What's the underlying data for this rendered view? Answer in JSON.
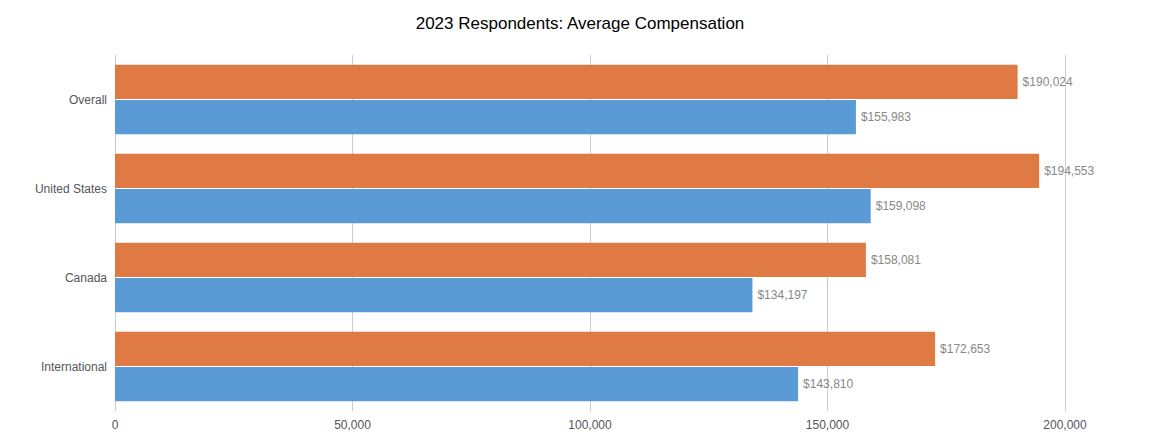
{
  "chart_data": {
    "type": "bar",
    "orientation": "horizontal",
    "title": "2023 Respondents: Average Compensation",
    "categories": [
      "Overall",
      "United States",
      "Canada",
      "International"
    ],
    "series": [
      {
        "color": "#E07A45",
        "values": [
          190024,
          194553,
          158081,
          172653
        ],
        "value_labels": [
          "$190,024",
          "$194,553",
          "$158,081",
          "$172,653"
        ]
      },
      {
        "color": "#5B9BD5",
        "values": [
          155983,
          159098,
          134197,
          143810
        ],
        "value_labels": [
          "$155,983",
          "$159,098",
          "$134,197",
          "$143,810"
        ]
      }
    ],
    "xlim": [
      0,
      200000
    ],
    "xticks": [
      0,
      {
        "value": 50000,
        "label": "50,000"
      },
      {
        "value": 100000,
        "label": "100,000"
      },
      {
        "value": 150000,
        "label": "150,000"
      },
      {
        "value": 200000,
        "label": "200,000"
      }
    ],
    "grid": true,
    "data_labels": true
  }
}
